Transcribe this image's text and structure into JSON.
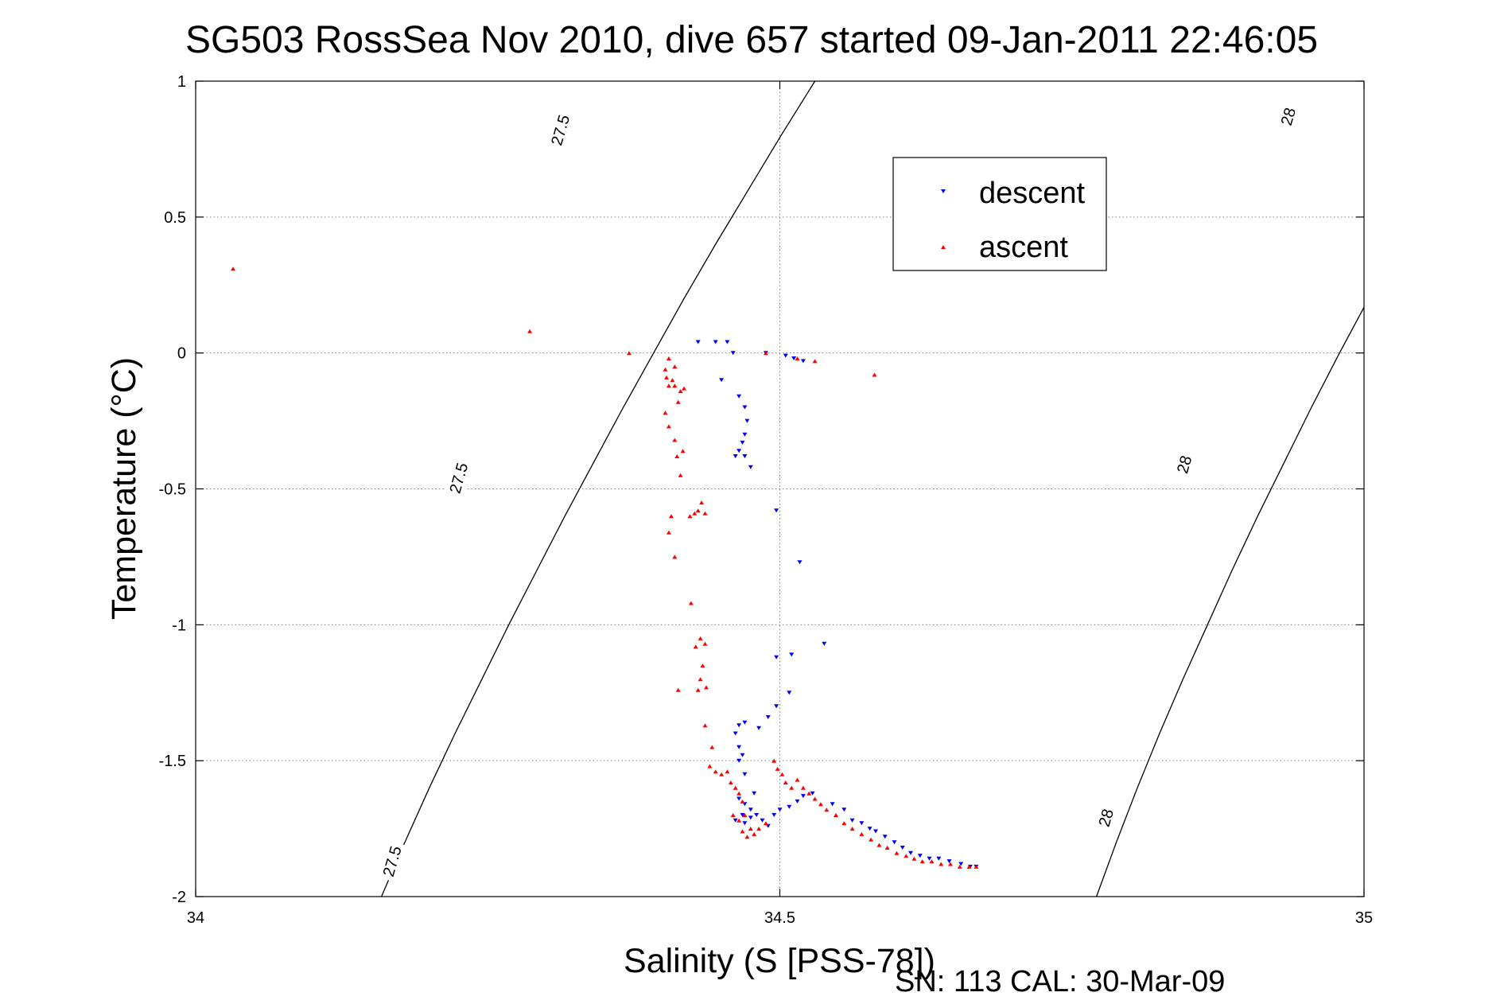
{
  "chart_data": {
    "type": "scatter",
    "title": "SG503 RossSea Nov 2010, dive 657 started 09-Jan-2011 22:46:05",
    "xlabel": "Salinity (S [PSS-78])",
    "ylabel": "Temperature (°C)",
    "footer": "SN: 113  CAL: 30-Mar-09",
    "xlim": [
      34,
      35
    ],
    "ylim": [
      -2,
      1
    ],
    "xticks": [
      34,
      34.5,
      35
    ],
    "xtick_labels": [
      "34",
      "34.5",
      "35"
    ],
    "yticks": [
      1,
      0.5,
      0,
      -0.5,
      -1,
      -1.5,
      -2
    ],
    "ytick_labels": [
      "1",
      "0.5",
      "0",
      "-0.5",
      "-1",
      "-1.5",
      "-2"
    ],
    "grid": true,
    "legend_position": "top-right",
    "colors": {
      "descent": "#0000ff",
      "ascent": "#ff0000",
      "contour": "#000000",
      "grid": "#7f7f7f"
    },
    "contours": [
      {
        "level": 27.5,
        "points": [
          [
            34.159,
            -2.0
          ],
          [
            34.179,
            -1.8
          ],
          [
            34.2,
            -1.6
          ],
          [
            34.222,
            -1.4
          ],
          [
            34.245,
            -1.2
          ],
          [
            34.268,
            -1.0
          ],
          [
            34.292,
            -0.8
          ],
          [
            34.316,
            -0.6
          ],
          [
            34.341,
            -0.4
          ],
          [
            34.366,
            -0.2
          ],
          [
            34.392,
            0.0
          ],
          [
            34.418,
            0.2
          ],
          [
            34.445,
            0.4
          ],
          [
            34.473,
            0.6
          ],
          [
            34.501,
            0.8
          ],
          [
            34.53,
            1.0
          ]
        ],
        "labels": [
          [
            34.168,
            -1.87,
            "27.5"
          ],
          [
            34.225,
            -0.46,
            "27.5"
          ],
          [
            34.312,
            0.82,
            "27.5"
          ]
        ]
      },
      {
        "level": 28,
        "points": [
          [
            34.771,
            -2.0
          ],
          [
            34.788,
            -1.8
          ],
          [
            34.806,
            -1.6
          ],
          [
            34.825,
            -1.4
          ],
          [
            34.845,
            -1.2
          ],
          [
            34.866,
            -1.0
          ],
          [
            34.887,
            -0.8
          ],
          [
            34.909,
            -0.6
          ],
          [
            34.932,
            -0.4
          ],
          [
            34.955,
            -0.2
          ],
          [
            34.979,
            0.0
          ],
          [
            35.004,
            0.2
          ],
          [
            35.03,
            0.4
          ],
          [
            35.056,
            0.6
          ],
          [
            35.083,
            0.8
          ],
          [
            35.111,
            1.0
          ]
        ],
        "labels": [
          [
            34.779,
            -1.71,
            "28"
          ],
          [
            34.846,
            -0.41,
            "28"
          ],
          [
            34.935,
            0.87,
            "28"
          ]
        ]
      }
    ],
    "series": [
      {
        "name": "descent",
        "marker": "triangle-down",
        "points": [
          [
            34.43,
            0.04
          ],
          [
            34.445,
            0.04
          ],
          [
            34.455,
            0.04
          ],
          [
            34.46,
            0.0
          ],
          [
            34.45,
            -0.1
          ],
          [
            34.465,
            -0.16
          ],
          [
            34.47,
            -0.2
          ],
          [
            34.472,
            -0.25
          ],
          [
            34.47,
            -0.3
          ],
          [
            34.468,
            -0.33
          ],
          [
            34.465,
            -0.36
          ],
          [
            34.462,
            -0.38
          ],
          [
            34.47,
            -0.38
          ],
          [
            34.475,
            -0.42
          ],
          [
            34.488,
            0.0
          ],
          [
            34.505,
            -0.01
          ],
          [
            34.512,
            -0.02
          ],
          [
            34.52,
            -0.03
          ],
          [
            34.497,
            -0.58
          ],
          [
            34.517,
            -0.77
          ],
          [
            34.538,
            -1.07
          ],
          [
            34.497,
            -1.12
          ],
          [
            34.51,
            -1.11
          ],
          [
            34.508,
            -1.25
          ],
          [
            34.497,
            -1.3
          ],
          [
            34.49,
            -1.34
          ],
          [
            34.482,
            -1.38
          ],
          [
            34.465,
            -1.37
          ],
          [
            34.47,
            -1.36
          ],
          [
            34.462,
            -1.4
          ],
          [
            34.465,
            -1.45
          ],
          [
            34.468,
            -1.48
          ],
          [
            34.465,
            -1.5
          ],
          [
            34.47,
            -1.55
          ],
          [
            34.478,
            -1.62
          ],
          [
            34.465,
            -1.64
          ],
          [
            34.47,
            -1.66
          ],
          [
            34.475,
            -1.68
          ],
          [
            34.48,
            -1.7
          ],
          [
            34.468,
            -1.7
          ],
          [
            34.462,
            -1.72
          ],
          [
            34.47,
            -1.73
          ],
          [
            34.475,
            -1.71
          ],
          [
            34.485,
            -1.72
          ],
          [
            34.49,
            -1.74
          ],
          [
            34.495,
            -1.7
          ],
          [
            34.5,
            -1.68
          ],
          [
            34.508,
            -1.67
          ],
          [
            34.515,
            -1.65
          ],
          [
            34.52,
            -1.63
          ],
          [
            34.528,
            -1.62
          ],
          [
            34.545,
            -1.66
          ],
          [
            34.555,
            -1.68
          ],
          [
            34.562,
            -1.72
          ],
          [
            34.57,
            -1.73
          ],
          [
            34.577,
            -1.75
          ],
          [
            34.582,
            -1.76
          ],
          [
            34.59,
            -1.78
          ],
          [
            34.598,
            -1.8
          ],
          [
            34.605,
            -1.82
          ],
          [
            34.612,
            -1.84
          ],
          [
            34.62,
            -1.85
          ],
          [
            34.628,
            -1.86
          ],
          [
            34.636,
            -1.86
          ],
          [
            34.645,
            -1.87
          ],
          [
            34.655,
            -1.88
          ],
          [
            34.663,
            -1.89
          ],
          [
            34.668,
            -1.89
          ]
        ]
      },
      {
        "name": "ascent",
        "marker": "triangle-up",
        "points": [
          [
            34.032,
            0.31
          ],
          [
            34.286,
            0.08
          ],
          [
            34.371,
            0.0
          ],
          [
            34.488,
            0.0
          ],
          [
            34.515,
            -0.02
          ],
          [
            34.53,
            -0.03
          ],
          [
            34.581,
            -0.08
          ],
          [
            34.405,
            -0.02
          ],
          [
            34.402,
            -0.06
          ],
          [
            34.41,
            -0.05
          ],
          [
            34.403,
            -0.09
          ],
          [
            34.408,
            -0.1
          ],
          [
            34.41,
            -0.12
          ],
          [
            34.415,
            -0.14
          ],
          [
            34.405,
            -0.12
          ],
          [
            34.418,
            -0.13
          ],
          [
            34.413,
            -0.18
          ],
          [
            34.402,
            -0.22
          ],
          [
            34.405,
            -0.27
          ],
          [
            34.41,
            -0.32
          ],
          [
            34.417,
            -0.36
          ],
          [
            34.412,
            -0.38
          ],
          [
            34.415,
            -0.45
          ],
          [
            34.407,
            -0.6
          ],
          [
            34.405,
            -0.66
          ],
          [
            34.423,
            -0.6
          ],
          [
            34.43,
            -0.58
          ],
          [
            34.436,
            -0.59
          ],
          [
            34.427,
            -0.59
          ],
          [
            34.433,
            -0.55
          ],
          [
            34.41,
            -0.75
          ],
          [
            34.424,
            -0.92
          ],
          [
            34.432,
            -1.05
          ],
          [
            34.428,
            -1.08
          ],
          [
            34.436,
            -1.07
          ],
          [
            34.434,
            -1.15
          ],
          [
            34.432,
            -1.2
          ],
          [
            34.43,
            -1.24
          ],
          [
            34.437,
            -1.23
          ],
          [
            34.413,
            -1.24
          ],
          [
            34.436,
            -1.37
          ],
          [
            34.442,
            -1.45
          ],
          [
            34.44,
            -1.52
          ],
          [
            34.445,
            -1.54
          ],
          [
            34.45,
            -1.55
          ],
          [
            34.455,
            -1.54
          ],
          [
            34.458,
            -1.58
          ],
          [
            34.462,
            -1.6
          ],
          [
            34.465,
            -1.62
          ],
          [
            34.468,
            -1.65
          ],
          [
            34.47,
            -1.7
          ],
          [
            34.465,
            -1.72
          ],
          [
            34.46,
            -1.7
          ],
          [
            34.475,
            -1.75
          ],
          [
            34.478,
            -1.77
          ],
          [
            34.472,
            -1.78
          ],
          [
            34.468,
            -1.76
          ],
          [
            34.482,
            -1.75
          ],
          [
            34.488,
            -1.73
          ],
          [
            34.495,
            -1.5
          ],
          [
            34.498,
            -1.53
          ],
          [
            34.502,
            -1.55
          ],
          [
            34.505,
            -1.58
          ],
          [
            34.51,
            -1.6
          ],
          [
            34.515,
            -1.57
          ],
          [
            34.52,
            -1.6
          ],
          [
            34.525,
            -1.62
          ],
          [
            34.53,
            -1.64
          ],
          [
            34.535,
            -1.66
          ],
          [
            34.54,
            -1.68
          ],
          [
            34.548,
            -1.7
          ],
          [
            34.555,
            -1.73
          ],
          [
            34.562,
            -1.75
          ],
          [
            34.57,
            -1.77
          ],
          [
            34.578,
            -1.79
          ],
          [
            34.585,
            -1.81
          ],
          [
            34.592,
            -1.82
          ],
          [
            34.6,
            -1.84
          ],
          [
            34.608,
            -1.85
          ],
          [
            34.615,
            -1.86
          ],
          [
            34.622,
            -1.87
          ],
          [
            34.63,
            -1.87
          ],
          [
            34.638,
            -1.88
          ],
          [
            34.646,
            -1.88
          ],
          [
            34.654,
            -1.89
          ],
          [
            34.662,
            -1.89
          ],
          [
            34.668,
            -1.89
          ]
        ]
      }
    ]
  }
}
